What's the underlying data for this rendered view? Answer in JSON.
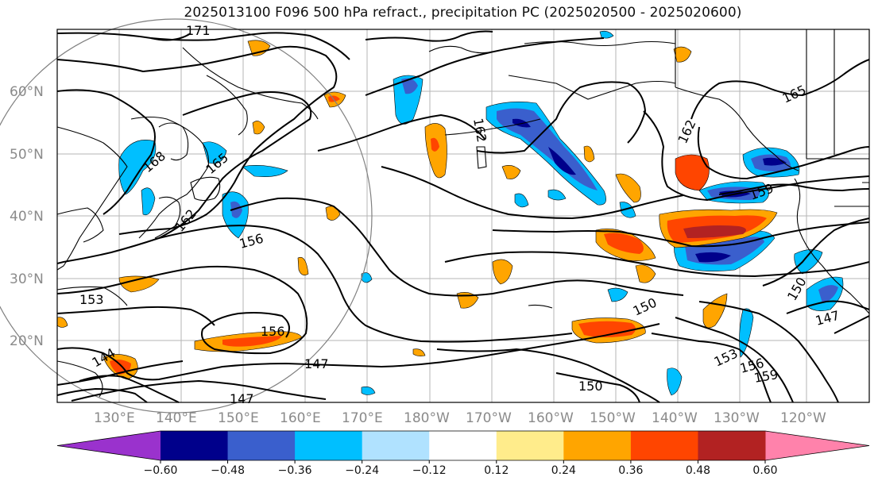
{
  "title": "2025013100 F096 500 hPa refract., precipitation PC (2025020500 - 2025020600)",
  "map": {
    "lat_labels": [
      "60°N",
      "50°N",
      "40°N",
      "30°N",
      "20°N"
    ],
    "lon_labels": [
      "130°E",
      "140°E",
      "150°E",
      "160°E",
      "170°E",
      "180°W",
      "170°W",
      "160°W",
      "150°W",
      "140°W",
      "130°W",
      "120°W"
    ],
    "contour_labels": [
      "171",
      "168",
      "165",
      "162",
      "156",
      "153",
      "156",
      "144",
      "147",
      "147",
      "150",
      "150",
      "153",
      "156",
      "159",
      "162",
      "165",
      "159",
      "150",
      "147",
      "162"
    ],
    "colors": {
      "neg_060": "#9a32cd",
      "neg_048": "#00008b",
      "neg_036": "#3a5fcd",
      "neg_024": "#00bfff",
      "neg_012": "#b0e2ff",
      "zero": "#ffffff",
      "pos_012": "#ffec8b",
      "pos_024": "#ffa500",
      "pos_036": "#ff4500",
      "pos_048": "#b22222",
      "pos_060": "#ff82ab"
    }
  },
  "colorbar": {
    "ticks": [
      "−0.60",
      "−0.48",
      "−0.36",
      "−0.24",
      "−0.12",
      "0.12",
      "0.24",
      "0.36",
      "0.48",
      "0.60"
    ],
    "colors": [
      "#9a32cd",
      "#00008b",
      "#3a5fcd",
      "#00bfff",
      "#b0e2ff",
      "#ffffff",
      "#ffec8b",
      "#ffa500",
      "#ff4500",
      "#b22222",
      "#ff82ab"
    ]
  }
}
